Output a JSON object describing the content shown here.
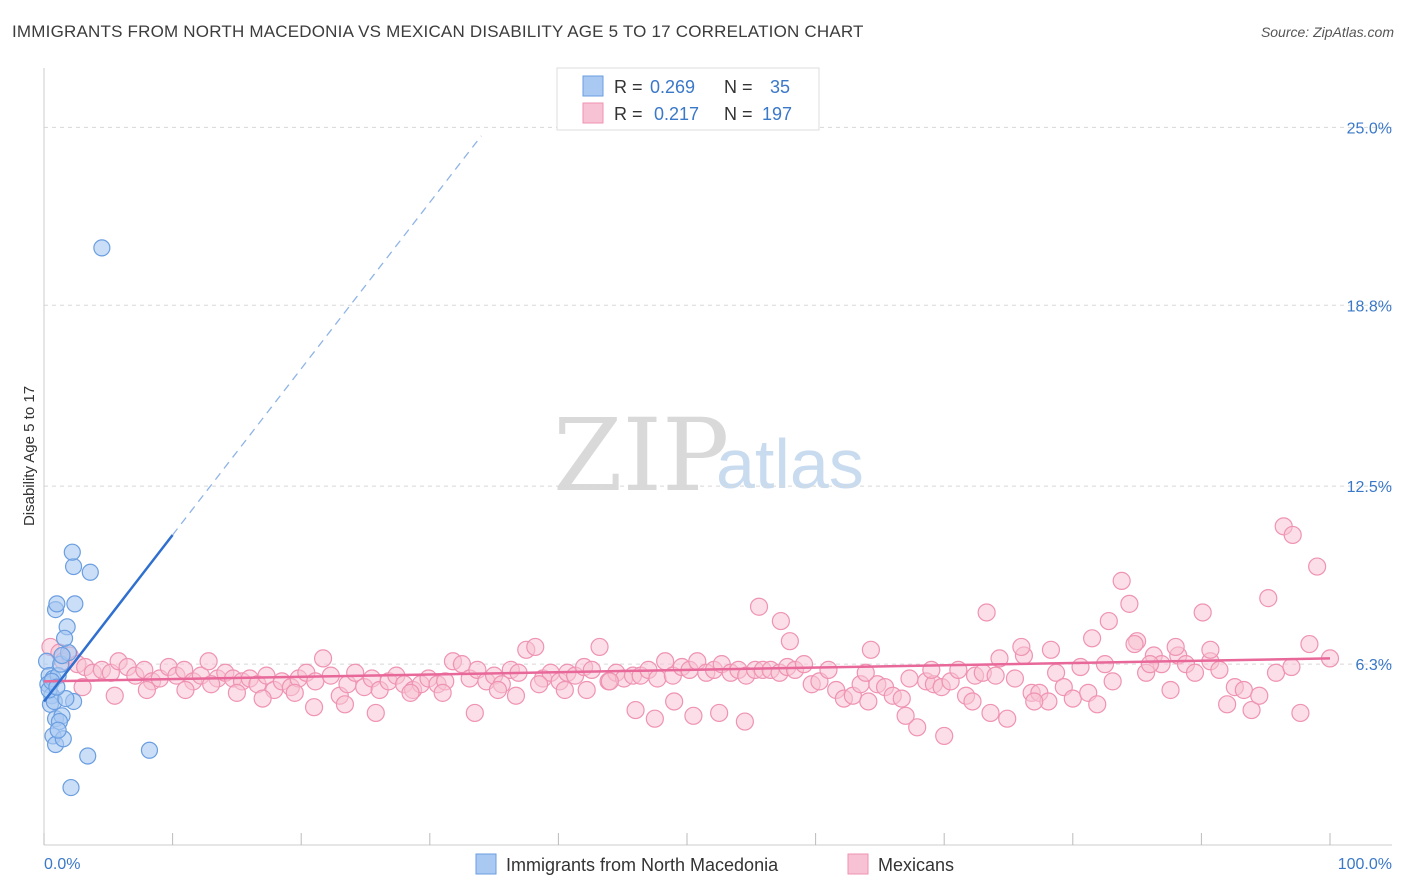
{
  "title": "IMMIGRANTS FROM NORTH MACEDONIA VS MEXICAN DISABILITY AGE 5 TO 17 CORRELATION CHART",
  "source": "Source: ZipAtlas.com",
  "watermark": {
    "zip": "ZIP",
    "atlas": "atlas"
  },
  "legend": {
    "r_label": "R =",
    "n_label": "N =",
    "series1": {
      "r": "0.269",
      "n": "35"
    },
    "series2": {
      "r": "0.217",
      "n": "197"
    }
  },
  "bottom_legend": {
    "series1": "Immigrants from North Macedonia",
    "series2": "Mexicans"
  },
  "colors": {
    "blue_fill": "#a9c8f2",
    "blue_stroke": "#6a9ee0",
    "blue_line": "#2f6fd0",
    "pink_fill": "#f7c2d3",
    "pink_stroke": "#ef93b2",
    "pink_line": "#e8689a",
    "tick_text": "#3a78c8",
    "grid": "#d8d8d8"
  },
  "chart_data": {
    "type": "scatter",
    "title": "IMMIGRANTS FROM NORTH MACEDONIA VS MEXICAN DISABILITY AGE 5 TO 17 CORRELATION CHART",
    "xlabel": "",
    "ylabel": "Disability Age 5 to 17",
    "xlim": [
      0,
      100
    ],
    "ylim": [
      0,
      26.3
    ],
    "x_tick_labels": [
      "0.0%",
      "100.0%"
    ],
    "y_ticks": [
      6.3,
      12.5,
      18.8,
      25.0
    ],
    "y_tick_labels": [
      "6.3%",
      "12.5%",
      "18.8%",
      "25.0%"
    ],
    "series": [
      {
        "name": "Immigrants from North Macedonia",
        "R": 0.269,
        "N": 35,
        "trend": {
          "x0": 0.0,
          "y0": 5.0,
          "x1": 10.0,
          "y1": 10.8,
          "dash_to_x": 34.0,
          "dash_to_y": 24.7
        },
        "points": [
          [
            0.2,
            6.4
          ],
          [
            0.4,
            5.9
          ],
          [
            0.3,
            5.6
          ],
          [
            0.6,
            5.2
          ],
          [
            0.5,
            4.9
          ],
          [
            0.8,
            5.0
          ],
          [
            0.4,
            5.4
          ],
          [
            0.7,
            5.8
          ],
          [
            1.1,
            5.9
          ],
          [
            1.3,
            6.3
          ],
          [
            0.9,
            4.4
          ],
          [
            1.4,
            4.5
          ],
          [
            1.2,
            4.3
          ],
          [
            0.7,
            3.8
          ],
          [
            0.9,
            3.5
          ],
          [
            1.5,
            3.7
          ],
          [
            2.3,
            5.0
          ],
          [
            1.7,
            5.1
          ],
          [
            1.9,
            6.7
          ],
          [
            1.8,
            7.6
          ],
          [
            1.6,
            7.2
          ],
          [
            2.4,
            8.4
          ],
          [
            0.9,
            8.2
          ],
          [
            1.0,
            8.4
          ],
          [
            2.3,
            9.7
          ],
          [
            2.2,
            10.2
          ],
          [
            3.6,
            9.5
          ],
          [
            0.6,
            5.7
          ],
          [
            1.1,
            4.0
          ],
          [
            1.4,
            6.6
          ],
          [
            3.4,
            3.1
          ],
          [
            2.1,
            2.0
          ],
          [
            4.5,
            20.8
          ],
          [
            8.2,
            3.3
          ],
          [
            1.0,
            5.5
          ]
        ]
      },
      {
        "name": "Mexicans",
        "R": 0.217,
        "N": 197,
        "trend": {
          "x0": 0.0,
          "y0": 5.7,
          "x1": 100.0,
          "y1": 6.5
        },
        "points": [
          [
            0.5,
            6.9
          ],
          [
            1.2,
            6.7
          ],
          [
            1.5,
            6.4
          ],
          [
            2.0,
            6.6
          ],
          [
            2.6,
            6.3
          ],
          [
            3.2,
            6.2
          ],
          [
            3.8,
            6.0
          ],
          [
            4.5,
            6.1
          ],
          [
            5.2,
            6.0
          ],
          [
            5.8,
            6.4
          ],
          [
            6.5,
            6.2
          ],
          [
            7.1,
            5.9
          ],
          [
            7.8,
            6.1
          ],
          [
            8.4,
            5.7
          ],
          [
            9.0,
            5.8
          ],
          [
            9.7,
            6.2
          ],
          [
            10.3,
            5.9
          ],
          [
            10.9,
            6.1
          ],
          [
            11.6,
            5.7
          ],
          [
            12.2,
            5.9
          ],
          [
            12.8,
            6.4
          ],
          [
            13.5,
            5.8
          ],
          [
            14.1,
            6.0
          ],
          [
            14.7,
            5.8
          ],
          [
            15.4,
            5.7
          ],
          [
            16.0,
            5.8
          ],
          [
            16.6,
            5.6
          ],
          [
            17.3,
            5.9
          ],
          [
            17.9,
            5.4
          ],
          [
            18.5,
            5.7
          ],
          [
            19.2,
            5.5
          ],
          [
            19.8,
            5.8
          ],
          [
            20.4,
            6.0
          ],
          [
            21.1,
            5.7
          ],
          [
            21.7,
            6.5
          ],
          [
            22.3,
            5.9
          ],
          [
            23.0,
            5.2
          ],
          [
            23.6,
            5.6
          ],
          [
            24.2,
            6.0
          ],
          [
            24.9,
            5.5
          ],
          [
            25.5,
            5.8
          ],
          [
            26.1,
            5.4
          ],
          [
            26.8,
            5.7
          ],
          [
            27.4,
            5.9
          ],
          [
            28.0,
            5.6
          ],
          [
            28.7,
            5.4
          ],
          [
            29.3,
            5.6
          ],
          [
            29.9,
            5.8
          ],
          [
            30.6,
            5.6
          ],
          [
            31.2,
            5.7
          ],
          [
            31.8,
            6.4
          ],
          [
            32.5,
            6.3
          ],
          [
            33.1,
            5.8
          ],
          [
            33.7,
            6.1
          ],
          [
            34.4,
            5.7
          ],
          [
            35.0,
            5.9
          ],
          [
            35.6,
            5.6
          ],
          [
            36.3,
            6.1
          ],
          [
            36.9,
            6.0
          ],
          [
            37.5,
            6.8
          ],
          [
            38.2,
            6.9
          ],
          [
            38.8,
            5.8
          ],
          [
            39.4,
            6.0
          ],
          [
            40.1,
            5.7
          ],
          [
            40.7,
            6.0
          ],
          [
            41.3,
            5.9
          ],
          [
            42.0,
            6.2
          ],
          [
            42.6,
            6.1
          ],
          [
            43.2,
            6.9
          ],
          [
            43.9,
            5.7
          ],
          [
            44.5,
            6.0
          ],
          [
            45.1,
            5.8
          ],
          [
            45.8,
            5.9
          ],
          [
            46.4,
            5.9
          ],
          [
            47.0,
            6.1
          ],
          [
            47.7,
            5.8
          ],
          [
            48.3,
            6.4
          ],
          [
            48.9,
            5.9
          ],
          [
            49.6,
            6.2
          ],
          [
            50.2,
            6.1
          ],
          [
            50.8,
            6.4
          ],
          [
            51.5,
            6.0
          ],
          [
            52.1,
            6.1
          ],
          [
            52.7,
            6.3
          ],
          [
            53.4,
            6.0
          ],
          [
            54.0,
            6.1
          ],
          [
            54.6,
            5.9
          ],
          [
            55.3,
            6.1
          ],
          [
            55.9,
            6.1
          ],
          [
            56.5,
            6.1
          ],
          [
            57.2,
            6.0
          ],
          [
            57.8,
            6.2
          ],
          [
            58.4,
            6.1
          ],
          [
            59.1,
            6.3
          ],
          [
            59.7,
            5.6
          ],
          [
            60.3,
            5.7
          ],
          [
            61.0,
            6.1
          ],
          [
            61.6,
            5.4
          ],
          [
            62.2,
            5.1
          ],
          [
            62.9,
            5.2
          ],
          [
            63.5,
            5.6
          ],
          [
            64.1,
            5.0
          ],
          [
            64.8,
            5.6
          ],
          [
            65.4,
            5.5
          ],
          [
            66.0,
            5.2
          ],
          [
            66.7,
            5.1
          ],
          [
            67.3,
            5.8
          ],
          [
            67.9,
            4.1
          ],
          [
            68.6,
            5.7
          ],
          [
            69.2,
            5.6
          ],
          [
            69.8,
            5.5
          ],
          [
            70.5,
            5.7
          ],
          [
            71.1,
            6.1
          ],
          [
            71.7,
            5.2
          ],
          [
            72.4,
            5.9
          ],
          [
            73.0,
            6.0
          ],
          [
            73.6,
            4.6
          ],
          [
            74.3,
            6.5
          ],
          [
            74.9,
            4.4
          ],
          [
            75.5,
            5.8
          ],
          [
            76.2,
            6.6
          ],
          [
            76.8,
            5.3
          ],
          [
            77.4,
            5.3
          ],
          [
            78.1,
            5.0
          ],
          [
            78.7,
            6.0
          ],
          [
            79.3,
            5.5
          ],
          [
            80.0,
            5.1
          ],
          [
            80.6,
            6.2
          ],
          [
            81.2,
            5.3
          ],
          [
            81.9,
            4.9
          ],
          [
            82.5,
            6.3
          ],
          [
            83.1,
            5.7
          ],
          [
            83.8,
            9.2
          ],
          [
            84.4,
            8.4
          ],
          [
            85.0,
            7.1
          ],
          [
            85.7,
            6.0
          ],
          [
            86.3,
            6.6
          ],
          [
            86.9,
            6.3
          ],
          [
            87.6,
            5.4
          ],
          [
            88.2,
            6.6
          ],
          [
            88.8,
            6.3
          ],
          [
            89.5,
            6.0
          ],
          [
            90.1,
            8.1
          ],
          [
            90.7,
            6.4
          ],
          [
            91.4,
            6.1
          ],
          [
            92.0,
            4.9
          ],
          [
            92.6,
            5.5
          ],
          [
            93.3,
            5.4
          ],
          [
            93.9,
            4.7
          ],
          [
            94.5,
            5.2
          ],
          [
            95.2,
            8.6
          ],
          [
            95.8,
            6.0
          ],
          [
            96.4,
            11.1
          ],
          [
            97.1,
            10.8
          ],
          [
            97.7,
            4.6
          ],
          [
            98.4,
            7.0
          ],
          [
            99.0,
            9.7
          ],
          [
            100.0,
            6.5
          ],
          [
            3.0,
            5.5
          ],
          [
            5.5,
            5.2
          ],
          [
            8.0,
            5.4
          ],
          [
            11.0,
            5.4
          ],
          [
            13.0,
            5.6
          ],
          [
            15.0,
            5.3
          ],
          [
            17.0,
            5.1
          ],
          [
            19.5,
            5.3
          ],
          [
            21.0,
            4.8
          ],
          [
            23.4,
            4.9
          ],
          [
            25.8,
            4.6
          ],
          [
            28.5,
            5.3
          ],
          [
            31.0,
            5.3
          ],
          [
            33.5,
            4.6
          ],
          [
            35.3,
            5.4
          ],
          [
            36.7,
            5.2
          ],
          [
            38.5,
            5.6
          ],
          [
            40.5,
            5.4
          ],
          [
            42.2,
            5.4
          ],
          [
            44.0,
            5.7
          ],
          [
            46.0,
            4.7
          ],
          [
            47.5,
            4.4
          ],
          [
            49.0,
            5.0
          ],
          [
            50.5,
            4.5
          ],
          [
            52.5,
            4.6
          ],
          [
            54.5,
            4.3
          ],
          [
            55.6,
            8.3
          ],
          [
            57.3,
            7.8
          ],
          [
            58.0,
            7.1
          ],
          [
            64.3,
            6.8
          ],
          [
            73.3,
            8.1
          ],
          [
            76.0,
            6.9
          ],
          [
            78.3,
            6.8
          ],
          [
            81.5,
            7.2
          ],
          [
            82.8,
            7.8
          ],
          [
            84.8,
            7.0
          ],
          [
            88.0,
            6.9
          ],
          [
            90.7,
            6.8
          ],
          [
            63.9,
            6.0
          ],
          [
            69.0,
            6.1
          ],
          [
            86.0,
            6.3
          ],
          [
            97.0,
            6.2
          ],
          [
            67.0,
            4.5
          ],
          [
            70.0,
            3.8
          ],
          [
            72.2,
            5.0
          ],
          [
            74.0,
            5.9
          ],
          [
            77.0,
            5.0
          ]
        ]
      }
    ]
  }
}
